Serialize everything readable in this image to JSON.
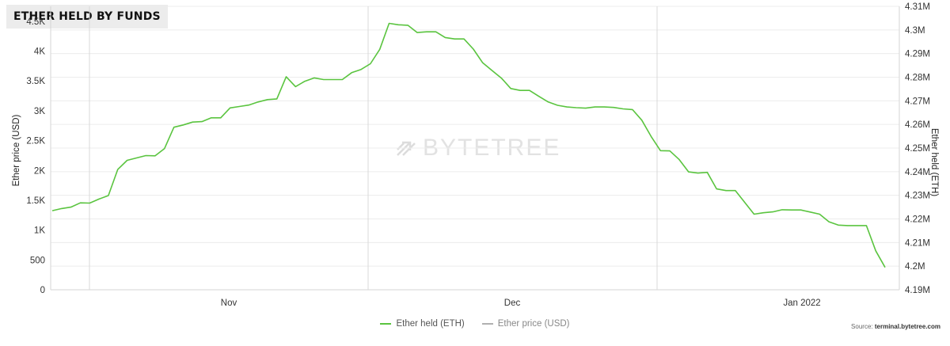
{
  "header": {
    "title": "ETHER HELD BY FUNDS"
  },
  "watermark": {
    "text": "BYTETREE"
  },
  "source": {
    "label": "Source:",
    "site": "terminal.bytetree.com"
  },
  "legend": [
    {
      "label": "Ether held (ETH)",
      "color": "#5ac43f"
    },
    {
      "label": "Ether price (USD)",
      "color": "#b0b0b0"
    }
  ],
  "chart_data": {
    "type": "line",
    "xlabel": "",
    "x_ticks": [
      "Nov",
      "Dec",
      "Jan 2022"
    ],
    "y_left": {
      "label": "Ether price (USD)",
      "ticks": [
        "0",
        "500",
        "1K",
        "1.5K",
        "2K",
        "2.5K",
        "3K",
        "3.5K",
        "4K",
        "4.5K"
      ],
      "range": [
        0,
        4750
      ]
    },
    "y_right": {
      "label": "Ether held (ETH)",
      "ticks": [
        "4.19M",
        "4.2M",
        "4.21M",
        "4.22M",
        "4.23M",
        "4.24M",
        "4.25M",
        "4.26M",
        "4.27M",
        "4.28M",
        "4.29M",
        "4.3M",
        "4.31M"
      ],
      "range": [
        4190000,
        4310000
      ]
    },
    "grid": true,
    "series": [
      {
        "name": "Ether held (ETH)",
        "color": "#5ac43f",
        "axis": "right",
        "values": [
          4223500,
          4224400,
          4225000,
          4226800,
          4226700,
          4228400,
          4229900,
          4240900,
          4244800,
          4245800,
          4246800,
          4246700,
          4249800,
          4258800,
          4259800,
          4261000,
          4261200,
          4262800,
          4262800,
          4267000,
          4267600,
          4268200,
          4269500,
          4270500,
          4270800,
          4280200,
          4276000,
          4278300,
          4279700,
          4279000,
          4279000,
          4279000,
          4281900,
          4283300,
          4285700,
          4291800,
          4302800,
          4302200,
          4302000,
          4298900,
          4299200,
          4299200,
          4296800,
          4296200,
          4296200,
          4291900,
          4286100,
          4282800,
          4279600,
          4275200,
          4274400,
          4274400,
          4271900,
          4269500,
          4268100,
          4267400,
          4267100,
          4266900,
          4267400,
          4267400,
          4267200,
          4266600,
          4266300,
          4261800,
          4254900,
          4248900,
          4248800,
          4245100,
          4239900,
          4239400,
          4239700,
          4232700,
          4232000,
          4232000,
          4227000,
          4222000,
          4222600,
          4223000,
          4223900,
          4223800,
          4223800,
          4222900,
          4222000,
          4218800,
          4217400,
          4217200,
          4217200,
          4217200,
          4206500,
          4199500
        ]
      }
    ]
  }
}
